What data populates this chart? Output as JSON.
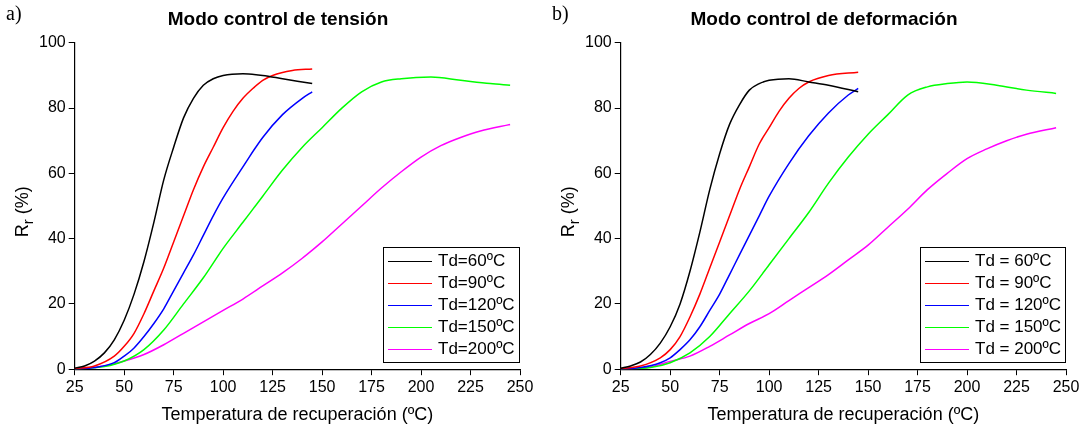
{
  "chart_data": [
    {
      "type": "line",
      "title": "Modo control de tensión",
      "xlabel": "Temperatura de recuperación (ºC)",
      "ylabel": "R$_{r}$ (%)",
      "annotations": [
        "a)"
      ],
      "xlim": [
        25,
        250
      ],
      "ylim": [
        0,
        100
      ],
      "xticks": [
        25,
        50,
        75,
        100,
        125,
        150,
        175,
        200,
        225,
        250
      ],
      "yticks": [
        0,
        20,
        40,
        60,
        80,
        100
      ],
      "grid": false,
      "legend": "bottom right",
      "marker": "none",
      "line_style": "solid",
      "series": [
        {
          "name": "Td=60ºC",
          "color": "#000000",
          "x": [
            25,
            30,
            35,
            40,
            45,
            50,
            55,
            60,
            65,
            70,
            75,
            80,
            85,
            90,
            95,
            100,
            110,
            120,
            130,
            145
          ],
          "values": [
            0.3,
            1,
            2.5,
            5,
            9,
            15,
            23,
            33,
            45,
            58,
            68,
            77,
            83,
            87,
            89,
            90,
            90.5,
            90,
            89,
            87.5
          ]
        },
        {
          "name": "Td=90ºC",
          "color": "#ff0000",
          "x": [
            25,
            35,
            45,
            50,
            55,
            60,
            65,
            70,
            75,
            80,
            85,
            90,
            95,
            100,
            105,
            110,
            115,
            120,
            125,
            135,
            145
          ],
          "values": [
            0.2,
            1,
            4,
            7,
            11,
            17,
            24,
            31,
            39,
            47,
            55,
            62,
            68,
            74,
            79,
            83,
            86,
            88.5,
            90,
            91.5,
            92
          ]
        },
        {
          "name": "Td=120ºC",
          "color": "#0000ff",
          "x": [
            25,
            35,
            45,
            50,
            55,
            60,
            65,
            70,
            75,
            80,
            85,
            90,
            95,
            100,
            110,
            120,
            130,
            140,
            145
          ],
          "values": [
            0,
            0.5,
            2,
            4,
            6.5,
            10,
            14,
            18.5,
            24,
            29.5,
            35,
            41,
            47,
            52.5,
            62,
            71,
            78,
            83,
            85
          ]
        },
        {
          "name": "Td=150ºC",
          "color": "#00ff00",
          "x": [
            25,
            40,
            50,
            60,
            70,
            80,
            90,
            100,
            110,
            120,
            130,
            140,
            150,
            160,
            170,
            180,
            190,
            205,
            220,
            235,
            245
          ],
          "values": [
            0,
            0.8,
            2.5,
            6,
            12,
            20,
            28,
            37,
            45,
            53,
            61,
            68,
            74,
            80,
            85,
            88,
            89,
            89.5,
            88.5,
            87.5,
            87
          ]
        },
        {
          "name": "Td=200ºC",
          "color": "#ff00ff",
          "x": [
            25,
            40,
            50,
            60,
            70,
            80,
            90,
            100,
            110,
            120,
            130,
            140,
            150,
            160,
            170,
            180,
            190,
            200,
            210,
            220,
            230,
            245
          ],
          "values": [
            0,
            1,
            2.5,
            4.5,
            7.5,
            11,
            14.5,
            18,
            21.5,
            25.5,
            29.5,
            34,
            39,
            44.5,
            50,
            55.5,
            60.5,
            65,
            68.5,
            71,
            73,
            75
          ]
        }
      ]
    },
    {
      "type": "line",
      "title": "Modo control de deformación",
      "xlabel": "Temperatura de recuperación (ºC)",
      "ylabel": "R$_{r}$ (%)",
      "annotations": [
        "b)"
      ],
      "xlim": [
        25,
        250
      ],
      "ylim": [
        0,
        100
      ],
      "xticks": [
        25,
        50,
        75,
        100,
        125,
        150,
        175,
        200,
        225,
        250
      ],
      "yticks": [
        0,
        20,
        40,
        60,
        80,
        100
      ],
      "grid": false,
      "legend": "bottom right",
      "marker": "none",
      "line_style": "solid",
      "series": [
        {
          "name": "Td = 60ºC",
          "color": "#000000",
          "x": [
            25,
            30,
            35,
            40,
            45,
            50,
            55,
            60,
            65,
            70,
            75,
            80,
            85,
            90,
            95,
            100,
            110,
            120,
            130,
            145
          ],
          "values": [
            0.3,
            1,
            2.2,
            4.5,
            8,
            13,
            20,
            30,
            42,
            55,
            66,
            75,
            81,
            85.5,
            87.5,
            88.5,
            89,
            88,
            87,
            85
          ]
        },
        {
          "name": "Td = 90ºC",
          "color": "#ff0000",
          "x": [
            25,
            35,
            45,
            50,
            55,
            60,
            65,
            70,
            75,
            80,
            85,
            90,
            95,
            100,
            105,
            110,
            115,
            120,
            130,
            145
          ],
          "values": [
            0.2,
            1,
            3.5,
            6,
            10,
            16,
            23,
            31,
            39,
            47,
            55,
            62,
            69,
            74,
            79,
            83,
            86,
            88,
            90,
            91
          ]
        },
        {
          "name": "Td = 120ºC",
          "color": "#0000ff",
          "x": [
            25,
            35,
            45,
            50,
            55,
            60,
            65,
            70,
            75,
            80,
            85,
            90,
            95,
            100,
            110,
            120,
            130,
            140,
            145
          ],
          "values": [
            0,
            0.5,
            2,
            3.5,
            6,
            9,
            13,
            18,
            23,
            29,
            35,
            41,
            47,
            53,
            63,
            71.5,
            78.5,
            84,
            86
          ]
        },
        {
          "name": "Td = 150ºC",
          "color": "#00ff00",
          "x": [
            25,
            40,
            50,
            60,
            70,
            80,
            90,
            100,
            110,
            120,
            130,
            140,
            150,
            160,
            170,
            180,
            190,
            200,
            215,
            230,
            245
          ],
          "values": [
            0,
            0.5,
            2,
            5,
            10,
            17,
            24,
            32,
            40,
            48,
            57,
            65,
            72,
            78,
            84,
            86.5,
            87.5,
            88,
            87,
            85.5,
            84.5
          ]
        },
        {
          "name": "Td = 200ºC",
          "color": "#ff00ff",
          "x": [
            25,
            40,
            50,
            60,
            70,
            80,
            90,
            100,
            110,
            120,
            130,
            140,
            150,
            160,
            170,
            180,
            190,
            200,
            210,
            220,
            230,
            245
          ],
          "values": [
            0,
            0.7,
            2.4,
            4,
            7,
            10.5,
            14,
            17,
            21,
            25,
            29,
            33.5,
            38,
            43.5,
            49,
            55,
            60,
            64.5,
            67.5,
            70,
            72,
            74
          ]
        }
      ]
    }
  ]
}
